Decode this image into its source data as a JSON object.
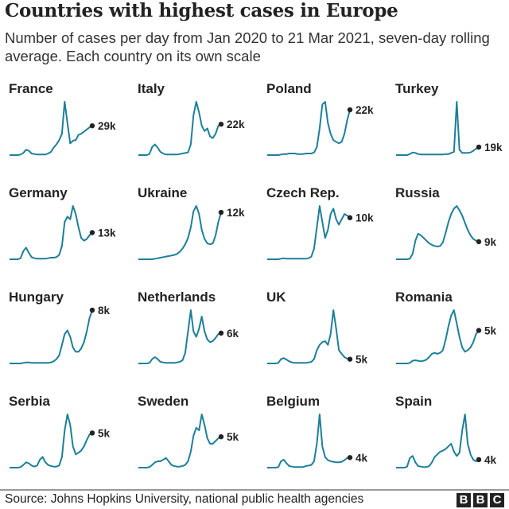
{
  "header": {
    "title": "Countries with highest cases in Europe",
    "subtitle": "Number of cases per day from Jan 2020 to 21 Mar 2021, seven-day rolling average. Each country on its own scale"
  },
  "footer": {
    "source": "Source: Johns Hopkins University, national public health agencies",
    "logo": [
      "B",
      "B",
      "C"
    ]
  },
  "colors": {
    "line": "#1d7f99",
    "dot": "#222222",
    "text": "#222222"
  },
  "chart_data": {
    "type": "line",
    "layout": "small-multiples",
    "x_range": [
      "Jan 2020",
      "21 Mar 2021"
    ],
    "x": [
      "2020-01-01",
      "2020-01-15",
      "2020-02-01",
      "2020-02-15",
      "2020-03-01",
      "2020-03-15",
      "2020-04-01",
      "2020-04-15",
      "2020-05-01",
      "2020-05-15",
      "2020-06-01",
      "2020-06-15",
      "2020-07-01",
      "2020-07-15",
      "2020-08-01",
      "2020-08-15",
      "2020-09-01",
      "2020-09-15",
      "2020-10-01",
      "2020-10-15",
      "2020-11-01",
      "2020-11-15",
      "2020-12-01",
      "2020-12-15",
      "2021-01-01",
      "2021-01-15",
      "2021-02-01",
      "2021-02-15",
      "2021-03-01",
      "2021-03-15",
      "2021-03-21"
    ],
    "y_note": "each country on its own scale; values are % of own peak",
    "series": [
      {
        "name": "France",
        "latest_label": "29k",
        "values": [
          0,
          0,
          0,
          0,
          1,
          4,
          10,
          8,
          3,
          2,
          1,
          1,
          1,
          1,
          3,
          6,
          14,
          20,
          28,
          40,
          100,
          60,
          22,
          27,
          28,
          38,
          40,
          44,
          48,
          52,
          55
        ]
      },
      {
        "name": "Italy",
        "latest_label": "22k",
        "values": [
          0,
          0,
          0,
          0,
          2,
          15,
          20,
          14,
          6,
          3,
          1,
          1,
          1,
          1,
          1,
          2,
          3,
          4,
          5,
          20,
          75,
          100,
          80,
          55,
          45,
          50,
          35,
          32,
          40,
          55,
          58
        ]
      },
      {
        "name": "Poland",
        "latest_label": "22k",
        "values": [
          0,
          0,
          0,
          0,
          0,
          1,
          2,
          2,
          3,
          3,
          3,
          2,
          2,
          2,
          3,
          3,
          3,
          5,
          15,
          50,
          95,
          100,
          60,
          40,
          28,
          25,
          22,
          25,
          40,
          65,
          85
        ]
      },
      {
        "name": "Turkey",
        "latest_label": "19k",
        "values": [
          0,
          0,
          0,
          0,
          0,
          2,
          5,
          4,
          2,
          1,
          1,
          1,
          1,
          1,
          1,
          1,
          1,
          1,
          2,
          2,
          4,
          6,
          100,
          10,
          4,
          4,
          4,
          5,
          8,
          12,
          15
        ]
      },
      {
        "name": "Germany",
        "latest_label": "13k",
        "values": [
          0,
          0,
          0,
          0,
          2,
          15,
          22,
          12,
          4,
          2,
          1,
          1,
          1,
          1,
          2,
          3,
          3,
          4,
          8,
          25,
          70,
          80,
          75,
          100,
          85,
          60,
          40,
          35,
          38,
          45,
          50
        ]
      },
      {
        "name": "Ukraine",
        "latest_label": "12k",
        "values": [
          0,
          0,
          0,
          0,
          0,
          0,
          1,
          2,
          3,
          4,
          5,
          6,
          7,
          8,
          10,
          14,
          20,
          28,
          40,
          60,
          90,
          100,
          85,
          55,
          38,
          30,
          28,
          30,
          45,
          70,
          88
        ]
      },
      {
        "name": "Czech Rep.",
        "latest_label": "10k",
        "values": [
          0,
          0,
          0,
          0,
          0,
          1,
          2,
          1,
          1,
          1,
          1,
          1,
          1,
          1,
          1,
          2,
          5,
          20,
          60,
          100,
          70,
          40,
          55,
          85,
          95,
          75,
          65,
          75,
          85,
          82,
          78
        ]
      },
      {
        "name": "Russia",
        "latest_label": "9k",
        "values": [
          0,
          0,
          0,
          0,
          0,
          1,
          10,
          35,
          48,
          45,
          40,
          35,
          30,
          27,
          25,
          24,
          25,
          32,
          50,
          70,
          85,
          95,
          100,
          92,
          82,
          68,
          55,
          45,
          38,
          35,
          33
        ]
      },
      {
        "name": "Hungary",
        "latest_label": "8k",
        "values": [
          0,
          0,
          0,
          0,
          0,
          1,
          2,
          2,
          1,
          1,
          1,
          1,
          1,
          1,
          1,
          2,
          4,
          8,
          15,
          35,
          55,
          62,
          50,
          30,
          22,
          22,
          28,
          40,
          60,
          85,
          100
        ]
      },
      {
        "name": "Netherlands",
        "latest_label": "6k",
        "values": [
          0,
          0,
          0,
          0,
          1,
          8,
          12,
          8,
          3,
          2,
          1,
          1,
          1,
          1,
          2,
          3,
          6,
          20,
          60,
          100,
          60,
          50,
          65,
          88,
          60,
          45,
          40,
          42,
          48,
          55,
          57
        ]
      },
      {
        "name": "UK",
        "latest_label": "5k",
        "values": [
          0,
          0,
          0,
          0,
          1,
          8,
          10,
          7,
          4,
          2,
          1,
          1,
          1,
          1,
          1,
          2,
          3,
          8,
          25,
          35,
          40,
          42,
          35,
          55,
          100,
          65,
          25,
          18,
          12,
          9,
          8
        ]
      },
      {
        "name": "Romania",
        "latest_label": "5k",
        "values": [
          0,
          0,
          0,
          0,
          0,
          1,
          5,
          6,
          5,
          4,
          5,
          7,
          12,
          18,
          20,
          18,
          20,
          25,
          45,
          70,
          90,
          100,
          75,
          50,
          30,
          22,
          25,
          30,
          40,
          55,
          62
        ]
      },
      {
        "name": "Serbia",
        "latest_label": "5k",
        "values": [
          0,
          0,
          0,
          0,
          1,
          5,
          10,
          8,
          4,
          2,
          4,
          15,
          20,
          10,
          5,
          3,
          2,
          2,
          4,
          20,
          70,
          100,
          80,
          40,
          25,
          28,
          32,
          40,
          52,
          62,
          65
        ]
      },
      {
        "name": "Sweden",
        "latest_label": "5k",
        "values": [
          0,
          0,
          0,
          0,
          1,
          5,
          10,
          12,
          12,
          15,
          18,
          12,
          5,
          3,
          2,
          2,
          3,
          5,
          12,
          30,
          60,
          75,
          70,
          100,
          80,
          55,
          45,
          45,
          50,
          55,
          58
        ]
      },
      {
        "name": "Belgium",
        "latest_label": "4k",
        "values": [
          0,
          0,
          0,
          0,
          1,
          12,
          15,
          8,
          3,
          2,
          1,
          1,
          1,
          1,
          3,
          4,
          5,
          12,
          45,
          100,
          40,
          20,
          14,
          12,
          11,
          10,
          10,
          11,
          14,
          18,
          19
        ]
      },
      {
        "name": "Spain",
        "latest_label": "4k",
        "values": [
          0,
          0,
          0,
          0,
          2,
          18,
          22,
          10,
          3,
          2,
          1,
          1,
          3,
          10,
          20,
          25,
          30,
          32,
          35,
          40,
          45,
          30,
          22,
          28,
          70,
          100,
          45,
          25,
          15,
          12,
          15
        ]
      }
    ]
  }
}
